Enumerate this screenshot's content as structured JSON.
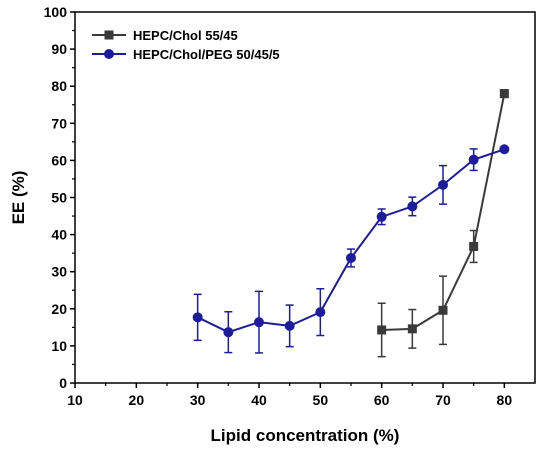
{
  "chart_data": {
    "type": "line",
    "xlabel": "Lipid concentration (%)",
    "ylabel": "EE (%)",
    "xlim": [
      10,
      85
    ],
    "ylim": [
      0,
      100
    ],
    "xticks": [
      10,
      20,
      30,
      40,
      50,
      60,
      70,
      80
    ],
    "yticks": [
      0,
      10,
      20,
      30,
      40,
      50,
      60,
      70,
      80,
      90,
      100
    ],
    "grid": false,
    "legend_position": "top-left",
    "series": [
      {
        "name": "HEPC/Chol 55/45",
        "color": "#3a3a3a",
        "marker": "square",
        "x": [
          60,
          65,
          70,
          75,
          80
        ],
        "y": [
          14.3,
          14.6,
          19.6,
          36.8,
          78.0
        ],
        "err": [
          7.2,
          5.2,
          9.2,
          4.3,
          1.0
        ]
      },
      {
        "name": "HEPC/Chol/PEG 50/45/5",
        "color": "#1c1c9c",
        "marker": "circle",
        "x": [
          30,
          35,
          40,
          45,
          50,
          55,
          60,
          65,
          70,
          75,
          80
        ],
        "y": [
          17.7,
          13.7,
          16.4,
          15.4,
          19.1,
          33.7,
          44.8,
          47.6,
          53.4,
          60.2,
          63.0
        ],
        "err": [
          6.2,
          5.5,
          8.3,
          5.6,
          6.3,
          2.4,
          2.1,
          2.5,
          5.2,
          2.9,
          0.4
        ]
      }
    ]
  }
}
